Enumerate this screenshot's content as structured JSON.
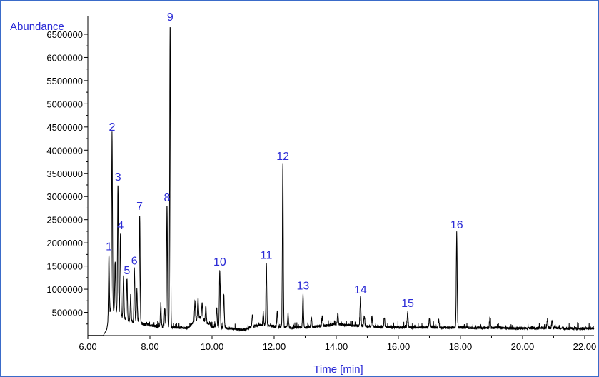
{
  "chart_data": {
    "type": "line",
    "title": "",
    "xlabel": "Time [min]",
    "ylabel": "Abundance",
    "xlim": [
      6.0,
      22.3
    ],
    "ylim": [
      0,
      6900000
    ],
    "x_ticks": [
      6,
      8,
      10,
      12,
      14,
      16,
      18,
      20,
      22
    ],
    "x_tick_labels": [
      "6.00",
      "8.00",
      "10.00",
      "12.00",
      "14.00",
      "16.00",
      "18.00",
      "20.00",
      "22.00"
    ],
    "y_ticks": [
      500000,
      1000000,
      1500000,
      2000000,
      2500000,
      3000000,
      3500000,
      4000000,
      4500000,
      5000000,
      5500000,
      6000000,
      6500000
    ],
    "y_tick_labels": [
      "500000",
      "1000000",
      "1500000",
      "2000000",
      "2500000",
      "3000000",
      "3500000",
      "4000000",
      "4500000",
      "5000000",
      "5500000",
      "6000000",
      "6500000"
    ],
    "grid": false,
    "colors": {
      "trace": "#000000",
      "labels": "#2b2bd6",
      "frame": "#3a6bc9"
    },
    "baseline": [
      [
        6.0,
        5000
      ],
      [
        6.5,
        5000
      ],
      [
        6.6,
        120000
      ],
      [
        6.75,
        600000
      ],
      [
        7.1,
        400000
      ],
      [
        7.4,
        300000
      ],
      [
        7.8,
        250000
      ],
      [
        8.2,
        200000
      ],
      [
        8.8,
        180000
      ],
      [
        9.2,
        160000
      ],
      [
        9.6,
        400000
      ],
      [
        10.0,
        200000
      ],
      [
        10.6,
        150000
      ],
      [
        11.0,
        120000
      ],
      [
        11.5,
        230000
      ],
      [
        12.0,
        200000
      ],
      [
        12.6,
        170000
      ],
      [
        13.0,
        180000
      ],
      [
        13.5,
        200000
      ],
      [
        14.0,
        250000
      ],
      [
        14.5,
        220000
      ],
      [
        15.0,
        200000
      ],
      [
        15.5,
        190000
      ],
      [
        16.0,
        180000
      ],
      [
        16.5,
        175000
      ],
      [
        17.0,
        180000
      ],
      [
        17.5,
        170000
      ],
      [
        18.0,
        175000
      ],
      [
        18.5,
        165000
      ],
      [
        19.0,
        170000
      ],
      [
        19.5,
        160000
      ],
      [
        20.0,
        155000
      ],
      [
        20.5,
        160000
      ],
      [
        21.0,
        165000
      ],
      [
        21.5,
        155000
      ],
      [
        22.3,
        150000
      ]
    ],
    "peaks": [
      {
        "label": "1",
        "x": 6.68,
        "y": 1750000
      },
      {
        "label": "2",
        "x": 6.78,
        "y": 4330000
      },
      {
        "label": "3",
        "x": 6.97,
        "y": 3250000
      },
      {
        "label": "4",
        "x": 7.05,
        "y": 2200000
      },
      {
        "label": "5",
        "x": 7.26,
        "y": 1230000
      },
      {
        "label": "6",
        "x": 7.5,
        "y": 1440000
      },
      {
        "label": "7",
        "x": 7.67,
        "y": 2620000
      },
      {
        "label": "8",
        "x": 8.55,
        "y": 2800000
      },
      {
        "label": "9",
        "x": 8.65,
        "y": 6700000
      },
      {
        "label": "10",
        "x": 10.25,
        "y": 1420000
      },
      {
        "label": "11",
        "x": 11.75,
        "y": 1560000
      },
      {
        "label": "12",
        "x": 12.28,
        "y": 3700000
      },
      {
        "label": "13",
        "x": 12.93,
        "y": 900000
      },
      {
        "label": "14",
        "x": 14.78,
        "y": 820000
      },
      {
        "label": "15",
        "x": 16.3,
        "y": 520000
      },
      {
        "label": "16",
        "x": 17.88,
        "y": 2220000
      }
    ],
    "minor_peaks": [
      [
        6.88,
        1600000
      ],
      [
        7.15,
        1300000
      ],
      [
        7.38,
        900000
      ],
      [
        7.58,
        1000000
      ],
      [
        8.35,
        700000
      ],
      [
        8.48,
        600000
      ],
      [
        9.45,
        750000
      ],
      [
        9.55,
        800000
      ],
      [
        9.68,
        720000
      ],
      [
        9.8,
        650000
      ],
      [
        10.15,
        600000
      ],
      [
        10.38,
        900000
      ],
      [
        11.3,
        450000
      ],
      [
        11.65,
        500000
      ],
      [
        12.1,
        520000
      ],
      [
        12.45,
        480000
      ],
      [
        13.2,
        380000
      ],
      [
        13.55,
        420000
      ],
      [
        14.05,
        500000
      ],
      [
        14.9,
        430000
      ],
      [
        15.15,
        420000
      ],
      [
        15.55,
        370000
      ],
      [
        17.0,
        360000
      ],
      [
        17.3,
        340000
      ],
      [
        18.95,
        380000
      ],
      [
        20.8,
        350000
      ],
      [
        20.95,
        330000
      ]
    ]
  }
}
